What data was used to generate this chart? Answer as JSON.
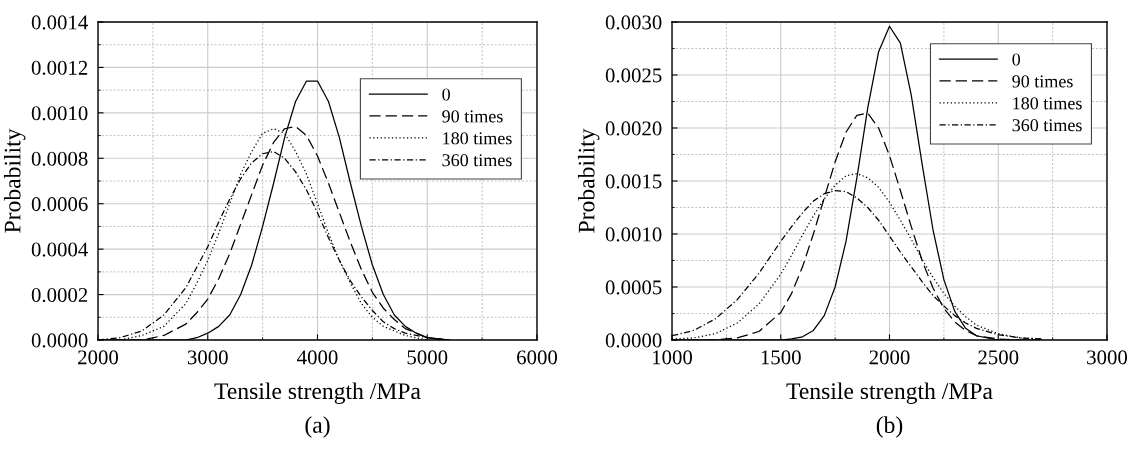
{
  "chart_data": [
    {
      "type": "line",
      "xlabel": "Tensile strength /MPa",
      "ylabel": "Probability",
      "annotations": [
        "(a)"
      ],
      "x": [
        2000,
        2200,
        2400,
        2600,
        2800,
        2900,
        3000,
        3100,
        3200,
        3300,
        3400,
        3500,
        3600,
        3700,
        3800,
        3900,
        4000,
        4100,
        4200,
        4300,
        4400,
        4500,
        4600,
        4700,
        4800,
        4900,
        5000,
        5200
      ],
      "series": [
        {
          "name": "0",
          "color": "#000000",
          "line_style": "solid",
          "values": [
            0.0,
            0.0,
            0.0,
            0.0,
            0.0,
            1e-05,
            3e-05,
            6e-05,
            0.00011,
            0.0002,
            0.00033,
            0.0005,
            0.00069,
            0.00089,
            0.00105,
            0.00114,
            0.00114,
            0.00105,
            0.00089,
            0.00069,
            0.0005,
            0.00033,
            0.0002,
            0.00011,
            6e-05,
            3e-05,
            1e-05,
            0.0
          ]
        },
        {
          "name": "90 times",
          "color": "#000000",
          "line_style": "dashed",
          "values": [
            0.0,
            0.0,
            0.0,
            2e-05,
            7e-05,
            0.00012,
            0.00018,
            0.00027,
            0.00038,
            0.00051,
            0.00064,
            0.00077,
            0.00087,
            0.00093,
            0.00094,
            0.0009,
            0.00081,
            0.00069,
            0.00056,
            0.00043,
            0.00031,
            0.00021,
            0.00014,
            9e-05,
            5e-05,
            3e-05,
            1e-05,
            0.0
          ]
        },
        {
          "name": "180 times",
          "color": "#000000",
          "line_style": "dotted",
          "x": [
            2000,
            2200,
            2400,
            2600,
            2800,
            2900,
            3000,
            3100,
            3200,
            3300,
            3400,
            3500,
            3600,
            3700,
            3800,
            3900,
            4000,
            4100,
            4200,
            4300,
            4400,
            4500,
            4600,
            4700,
            4800,
            4900,
            5000,
            5100
          ],
          "values": [
            0.0,
            0.0,
            2e-05,
            6e-05,
            0.00016,
            0.00025,
            0.00035,
            0.00047,
            0.0006,
            0.00073,
            0.00083,
            0.00091,
            0.00093,
            0.00091,
            0.00083,
            0.00073,
            0.0006,
            0.00047,
            0.00035,
            0.00025,
            0.00016,
            0.0001,
            6e-05,
            4e-05,
            2e-05,
            1e-05,
            0.0,
            0.0
          ]
        },
        {
          "name": "360 times",
          "color": "#000000",
          "line_style": "dashdot",
          "values": [
            0.0,
            1e-05,
            4e-05,
            0.00011,
            0.00023,
            0.00032,
            0.00041,
            0.00052,
            0.00062,
            0.00071,
            0.00078,
            0.00082,
            0.00083,
            0.0008,
            0.00074,
            0.00066,
            0.00056,
            0.00045,
            0.00035,
            0.00026,
            0.00019,
            0.00013,
            8e-05,
            5e-05,
            3e-05,
            2e-05,
            1e-05,
            0.0
          ]
        }
      ],
      "xlim": [
        2000,
        6000
      ],
      "ylim": [
        0,
        0.0014
      ],
      "xticks": [
        2000,
        {
          "value": 2500,
          "label": null
        },
        3000,
        {
          "value": 3500,
          "label": null
        },
        4000,
        {
          "value": 4500,
          "label": null
        },
        5000,
        {
          "value": 5500,
          "label": null
        },
        6000
      ],
      "yticks": [
        {
          "value": 0,
          "label": "0.0000"
        },
        {
          "value": 0.0001,
          "label": null
        },
        {
          "value": 0.0002,
          "label": "0.0002"
        },
        {
          "value": 0.0003,
          "label": null
        },
        {
          "value": 0.0004,
          "label": "0.0004"
        },
        {
          "value": 0.0005,
          "label": null
        },
        {
          "value": 0.0006,
          "label": "0.0006"
        },
        {
          "value": 0.0007,
          "label": null
        },
        {
          "value": 0.0008,
          "label": "0.0008"
        },
        {
          "value": 0.0009,
          "label": null
        },
        {
          "value": 0.001,
          "label": "0.0010"
        },
        {
          "value": 0.0011,
          "label": null
        },
        {
          "value": 0.0012,
          "label": "0.0012"
        },
        {
          "value": 0.0013,
          "label": null
        },
        {
          "value": 0.0014,
          "label": "0.0014"
        }
      ],
      "grid": true,
      "legend": "top right",
      "marker": "none"
    },
    {
      "type": "line",
      "xlabel": "Tensile strength /MPa",
      "ylabel": "Probability",
      "annotations": [
        "(b)"
      ],
      "x": [
        1000,
        1100,
        1200,
        1300,
        1400,
        1500,
        1550,
        1600,
        1650,
        1700,
        1750,
        1800,
        1850,
        1900,
        1950,
        2000,
        2050,
        2100,
        2150,
        2200,
        2250,
        2300,
        2350,
        2400,
        2500,
        2600,
        2700
      ],
      "series": [
        {
          "name": "0",
          "color": "#000000",
          "line_style": "solid",
          "values": [
            0.0,
            0.0,
            0.0,
            0.0,
            0.0,
            0.0,
            1e-05,
            3e-05,
            9e-05,
            0.00023,
            0.0005,
            0.00093,
            0.00153,
            0.00219,
            0.00272,
            0.00296,
            0.0028,
            0.00231,
            0.00166,
            0.00104,
            0.00057,
            0.00027,
            0.00011,
            4e-05,
            0.0,
            0.0,
            0.0
          ]
        },
        {
          "name": "90 times",
          "color": "#000000",
          "line_style": "dashed",
          "values": [
            0.0,
            0.0,
            0.0,
            2e-05,
            8e-05,
            0.00026,
            0.00044,
            0.00069,
            0.001,
            0.00134,
            0.00168,
            0.00196,
            0.00212,
            0.00214,
            0.002,
            0.00174,
            0.00141,
            0.00107,
            0.00075,
            0.00049,
            0.0003,
            0.00017,
            9e-05,
            4e-05,
            1e-05,
            0.0,
            0.0
          ]
        },
        {
          "name": "180 times",
          "color": "#000000",
          "line_style": "dotted",
          "values": [
            1e-05,
            2e-05,
            6e-05,
            0.00016,
            0.00034,
            0.00062,
            0.0008,
            0.00099,
            0.00117,
            0.00133,
            0.00146,
            0.00155,
            0.00157,
            0.00153,
            0.00144,
            0.0013,
            0.00113,
            0.00095,
            0.00076,
            0.00059,
            0.00044,
            0.00032,
            0.00022,
            0.00014,
            6e-05,
            2e-05,
            1e-05
          ]
        },
        {
          "name": "360 times",
          "color": "#000000",
          "line_style": "dashdot",
          "values": [
            4e-05,
            9e-05,
            0.0002,
            0.00038,
            0.00063,
            0.00093,
            0.00107,
            0.0012,
            0.00131,
            0.00138,
            0.00141,
            0.0014,
            0.00134,
            0.00125,
            0.00113,
            0.00098,
            0.00083,
            0.00069,
            0.00055,
            0.00042,
            0.00032,
            0.00023,
            0.00016,
            0.00011,
            5e-05,
            2e-05,
            1e-05
          ]
        }
      ],
      "xlim": [
        1000,
        3000
      ],
      "ylim": [
        0,
        0.003
      ],
      "xticks": [
        1000,
        {
          "value": 1250,
          "label": null
        },
        1500,
        {
          "value": 1750,
          "label": null
        },
        2000,
        {
          "value": 2250,
          "label": null
        },
        2500,
        {
          "value": 2750,
          "label": null
        },
        3000
      ],
      "yticks": [
        {
          "value": 0,
          "label": "0.0000"
        },
        {
          "value": 0.00025,
          "label": null
        },
        {
          "value": 0.0005,
          "label": "0.0005"
        },
        {
          "value": 0.00075,
          "label": null
        },
        {
          "value": 0.001,
          "label": "0.0010"
        },
        {
          "value": 0.00125,
          "label": null
        },
        {
          "value": 0.0015,
          "label": "0.0015"
        },
        {
          "value": 0.00175,
          "label": null
        },
        {
          "value": 0.002,
          "label": "0.0020"
        },
        {
          "value": 0.00225,
          "label": null
        },
        {
          "value": 0.0025,
          "label": "0.0025"
        },
        {
          "value": 0.00275,
          "label": null
        },
        {
          "value": 0.003,
          "label": "0.0030"
        }
      ],
      "grid": true,
      "legend": "top right",
      "marker": "none"
    }
  ]
}
